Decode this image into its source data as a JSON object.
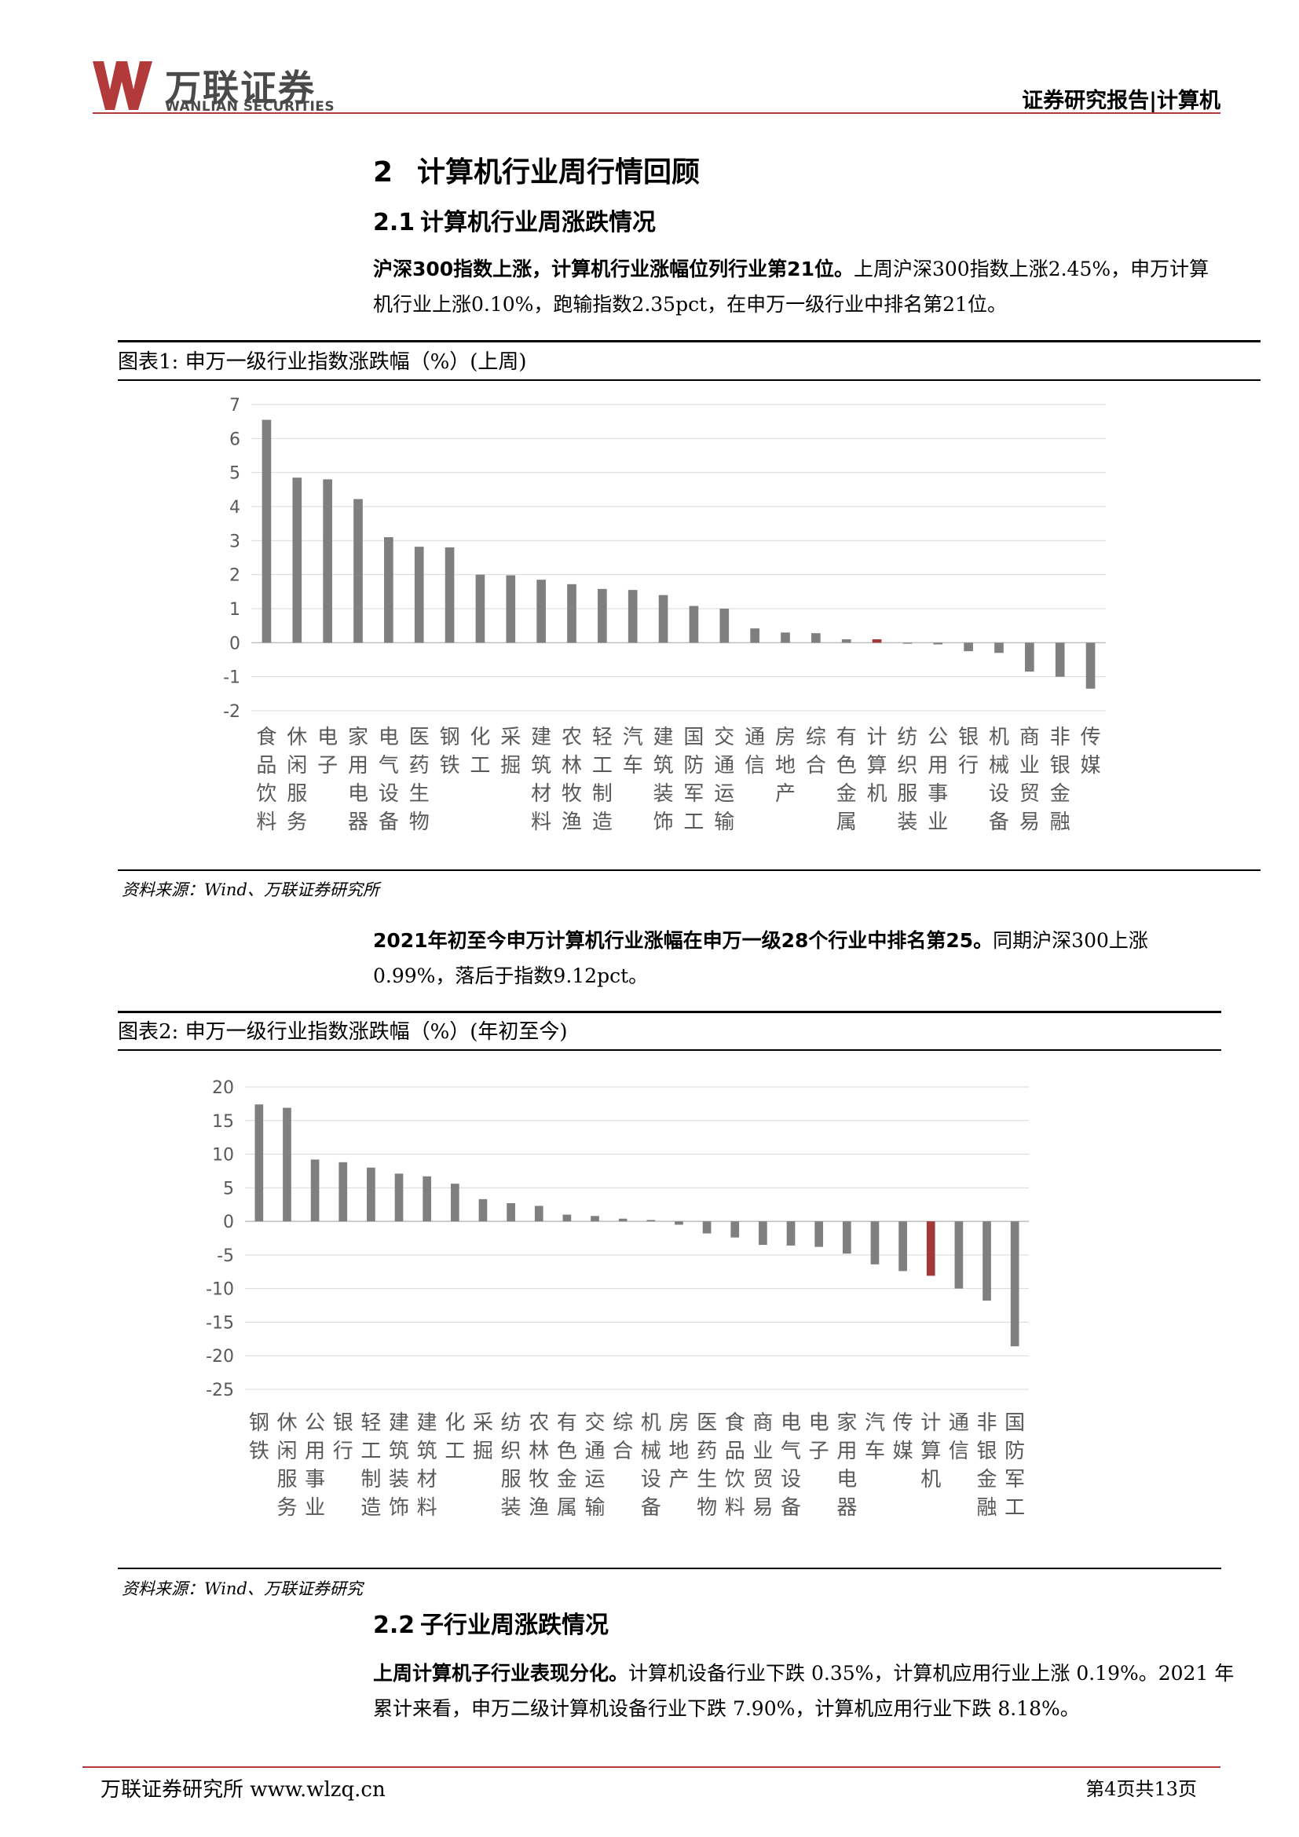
{
  "header": {
    "logo_cn": "万联证券",
    "logo_en": "WANLIAN SECURITIES",
    "report_type": "证券研究报告|计算机",
    "brand_color": "#b33a3a"
  },
  "section": {
    "number": "2",
    "title": "计算机行业周行情回顾"
  },
  "sub1": {
    "number": "2.1",
    "title": "计算机行业周涨跌情况"
  },
  "para1": {
    "bold": "沪深300指数上涨，计算机行业涨幅位列行业第21位。",
    "rest": "上周沪深300指数上涨2.45%，申万计算机行业上涨0.10%，跑输指数2.35pct，在申万一级行业中排名第21位。"
  },
  "figure1": {
    "title": "图表1:  申万一级行业指数涨跌幅（%）(上周)",
    "source": "资料来源：Wind、万联证券研究所"
  },
  "para2": {
    "bold": "2021年初至今申万计算机行业涨幅在申万一级28个行业中排名第25。",
    "rest": "同期沪深300上涨0.99%，落后于指数9.12pct。"
  },
  "figure2": {
    "title": "图表2:  申万一级行业指数涨跌幅（%）(年初至今)",
    "source": "资料来源：Wind、万联证券研究"
  },
  "sub2": {
    "number": "2.2",
    "title": "子行业周涨跌情况"
  },
  "para3": {
    "bold": "上周计算机子行业表现分化。",
    "rest": "计算机设备行业下跌 0.35%，计算机应用行业上涨 0.19%。2021 年累计来看，申万二级计算机设备行业下跌 7.90%，计算机应用行业下跌 8.18%。"
  },
  "footer": {
    "left": "万联证券研究所  www.wlzq.cn",
    "right": "第4页共13页"
  },
  "chart_data": [
    {
      "type": "bar",
      "categories": [
        "食品饮料",
        "休闲服务",
        "电子",
        "家用电器",
        "电气设备",
        "医药生物",
        "钢铁",
        "化工",
        "采掘",
        "建筑材料",
        "农林牧渔",
        "轻工制造",
        "汽车",
        "建筑装饰",
        "国防军工",
        "交通运输",
        "通信",
        "房地产",
        "综合",
        "有色金属",
        "计算机",
        "纺织服装",
        "公用事业",
        "银行",
        "机械设备",
        "商业贸易",
        "非银金融",
        "传媒"
      ],
      "values": [
        6.55,
        4.85,
        4.8,
        4.22,
        3.1,
        2.82,
        2.8,
        2.0,
        1.98,
        1.85,
        1.72,
        1.58,
        1.55,
        1.4,
        1.08,
        1.0,
        0.42,
        0.3,
        0.28,
        0.1,
        0.1,
        -0.03,
        -0.05,
        -0.25,
        -0.3,
        -0.85,
        -1.0,
        -1.35
      ],
      "highlight": "计算机",
      "ylim": [
        -2,
        7
      ],
      "yticks": [
        7,
        6,
        5,
        4,
        3,
        2,
        1,
        0,
        -1,
        -2
      ],
      "bar_color": "#7f7f7f",
      "highlight_color": "#a33a3a",
      "grid": true
    },
    {
      "type": "bar",
      "categories": [
        "钢铁",
        "休闲服务",
        "公用事业",
        "银行",
        "轻工制造",
        "建筑装饰",
        "建筑材料",
        "化工",
        "采掘",
        "纺织服装",
        "农林牧渔",
        "有色金属",
        "交通运输",
        "综合",
        "机械设备",
        "房地产",
        "医药生物",
        "食品饮料",
        "商业贸易",
        "电气设备",
        "电子",
        "家用电器",
        "汽车",
        "传媒",
        "计算机",
        "通信",
        "非银金融",
        "国防军工"
      ],
      "values": [
        17.4,
        16.9,
        9.2,
        8.8,
        8.0,
        7.1,
        6.7,
        5.6,
        3.3,
        2.7,
        2.3,
        1.0,
        0.8,
        0.4,
        0.2,
        -0.5,
        -1.8,
        -2.4,
        -3.5,
        -3.6,
        -3.8,
        -4.8,
        -6.4,
        -7.4,
        -8.1,
        -10.0,
        -11.8,
        -18.6
      ],
      "highlight": "计算机",
      "ylim": [
        -25,
        20
      ],
      "yticks": [
        20,
        15,
        10,
        5,
        0,
        -5,
        -10,
        -15,
        -20,
        -25
      ],
      "bar_color": "#7f7f7f",
      "highlight_color": "#a33a3a",
      "grid": true
    }
  ]
}
